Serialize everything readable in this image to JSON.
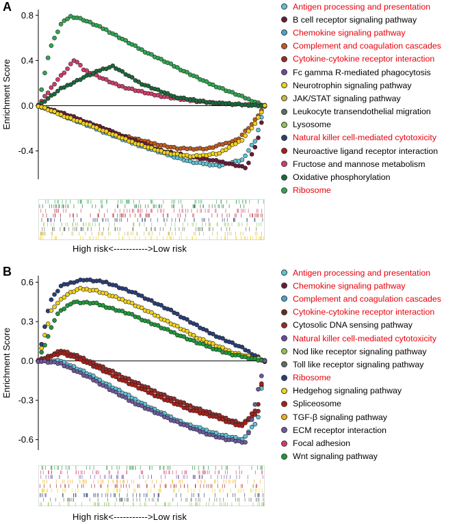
{
  "panels": [
    {
      "letter": "A",
      "ylabel": "Enrichment Score",
      "yticks": [
        0.8,
        0.4,
        0.0,
        -0.4
      ],
      "yticklabels": [
        "0.8",
        "0.4",
        "0.0",
        "-0.4"
      ],
      "xlabel": "High risk<----------->Low risk",
      "legend": [
        {
          "label": "Antigen processing and presentation",
          "color": "#5ec3d6",
          "highlight": true
        },
        {
          "label": "B cell receptor signaling pathway",
          "color": "#6b1a3c",
          "highlight": false
        },
        {
          "label": "Chemokine signaling pathway",
          "color": "#4fa5c8",
          "highlight": true
        },
        {
          "label": "Complement and coagulation cascades",
          "color": "#c25a1c",
          "highlight": true
        },
        {
          "label": "Cytokine-cytokine receptor interaction",
          "color": "#9a2a2a",
          "highlight": true
        },
        {
          "label": "Fc gamma R-mediated phagocytosis",
          "color": "#6b4aa0",
          "highlight": false
        },
        {
          "label": "Neurotrophin signaling pathway",
          "color": "#f2d21b",
          "highlight": false
        },
        {
          "label": "JAK/STAT signaling pathway",
          "color": "#c8b84a",
          "highlight": false
        },
        {
          "label": "Leukocyte transendothelial migration",
          "color": "#5f6e60",
          "highlight": false
        },
        {
          "label": "Lysosome",
          "color": "#8fc45a",
          "highlight": false
        },
        {
          "label": "Natural killer cell-mediated cytotoxicity",
          "color": "#2a3f7a",
          "highlight": true
        },
        {
          "label": "Neuroactive ligand receptor interaction",
          "color": "#a8201a",
          "highlight": false
        },
        {
          "label": "Fructose and mannose metabolism",
          "color": "#d43c6a",
          "highlight": false
        },
        {
          "label": "Oxidative phosphorylation",
          "color": "#1a6a3a",
          "highlight": false
        },
        {
          "label": "Ribosome",
          "color": "#2fa850",
          "highlight": true
        }
      ]
    },
    {
      "letter": "B",
      "ylabel": "Enrichment Score",
      "yticks": [
        0.6,
        0.3,
        0.0,
        -0.3,
        -0.6
      ],
      "yticklabels": [
        "0.6",
        "0.3",
        "0.0",
        "-0.3",
        "-0.6"
      ],
      "xlabel": "High risk<----------->Low risk",
      "legend": [
        {
          "label": "Antigen processing and presentation",
          "color": "#5ec3d6",
          "highlight": true
        },
        {
          "label": "Chemokine signaling pathway",
          "color": "#6b1a3c",
          "highlight": true
        },
        {
          "label": "Complement and coagulation cascades",
          "color": "#4fa5c8",
          "highlight": true
        },
        {
          "label": "Cytokine-cytokine receptor interaction",
          "color": "#6a2a1a",
          "highlight": true
        },
        {
          "label": "Cytosolic DNA sensing pathway",
          "color": "#9a2a2a",
          "highlight": false
        },
        {
          "label": "Natural killer cell-mediated cytotoxicity",
          "color": "#6b4aa0",
          "highlight": true
        },
        {
          "label": "Nod like receptor signaling pathway",
          "color": "#8fc45a",
          "highlight": false
        },
        {
          "label": "Toll like receptor signaling pathway",
          "color": "#5f6e60",
          "highlight": false
        },
        {
          "label": "Ribosome",
          "color": "#2a3f7a",
          "highlight": true
        },
        {
          "label": "Hedgehog signaling pathway",
          "color": "#f2d21b",
          "highlight": false
        },
        {
          "label": "Spliceosome",
          "color": "#a8201a",
          "highlight": false
        },
        {
          "label": "TGF-β signaling pathway",
          "color": "#f0b020",
          "highlight": false
        },
        {
          "label": "ECM receptor interaction",
          "color": "#6e5aa0",
          "highlight": false
        },
        {
          "label": "Focal adhesion",
          "color": "#d43c6a",
          "highlight": false
        },
        {
          "label": "Wnt signaling pathway",
          "color": "#1f9a3a",
          "highlight": false
        }
      ]
    }
  ],
  "chart_data": [
    {
      "type": "scatter",
      "title": "",
      "xlabel": "High risk<----------->Low risk",
      "ylabel": "Enrichment Score",
      "xlim": [
        0,
        1
      ],
      "ylim": [
        -0.65,
        0.85
      ],
      "series": [
        {
          "name": "Ribosome",
          "color": "#2fa850",
          "x": [
            0.0,
            0.05,
            0.1,
            0.14,
            0.17,
            0.2,
            0.3,
            0.45,
            0.6,
            0.75,
            0.9,
            1.0
          ],
          "y": [
            0.0,
            0.5,
            0.72,
            0.79,
            0.78,
            0.76,
            0.67,
            0.5,
            0.35,
            0.2,
            0.08,
            0.0
          ]
        },
        {
          "name": "Fructose and mannose metabolism",
          "color": "#d43c6a",
          "x": [
            0.0,
            0.08,
            0.13,
            0.16,
            0.2,
            0.35,
            0.5,
            0.65,
            0.8,
            1.0
          ],
          "y": [
            0.0,
            0.22,
            0.33,
            0.41,
            0.32,
            0.18,
            0.1,
            0.05,
            0.02,
            0.0
          ]
        },
        {
          "name": "Oxidative phosphorylation",
          "color": "#1a6a3a",
          "x": [
            0.0,
            0.1,
            0.2,
            0.28,
            0.33,
            0.45,
            0.6,
            0.75,
            0.9,
            1.0
          ],
          "y": [
            0.0,
            0.15,
            0.25,
            0.32,
            0.35,
            0.2,
            0.08,
            0.03,
            0.01,
            0.0
          ]
        },
        {
          "name": "Complement and coagulation cascades",
          "color": "#c25a1c",
          "x": [
            0.0,
            0.1,
            0.2,
            0.35,
            0.5,
            0.62,
            0.75,
            0.88,
            0.95,
            1.0
          ],
          "y": [
            0.0,
            -0.07,
            -0.14,
            -0.25,
            -0.33,
            -0.38,
            -0.38,
            -0.3,
            -0.15,
            0.0
          ]
        },
        {
          "name": "Antigen processing and presentation",
          "color": "#5ec3d6",
          "x": [
            0.0,
            0.1,
            0.25,
            0.4,
            0.55,
            0.68,
            0.8,
            0.9,
            0.96,
            1.0
          ],
          "y": [
            0.0,
            -0.08,
            -0.2,
            -0.32,
            -0.42,
            -0.5,
            -0.53,
            -0.48,
            -0.3,
            0.0
          ]
        },
        {
          "name": "B cell receptor signaling pathway",
          "color": "#6b1a3c",
          "x": [
            0.0,
            0.1,
            0.25,
            0.4,
            0.55,
            0.7,
            0.82,
            0.92,
            0.97,
            1.0
          ],
          "y": [
            0.0,
            -0.06,
            -0.17,
            -0.29,
            -0.4,
            -0.46,
            -0.5,
            -0.55,
            -0.3,
            0.0
          ]
        },
        {
          "name": "Neurotrophin signaling pathway",
          "color": "#f2d21b",
          "x": [
            0.0,
            0.1,
            0.25,
            0.4,
            0.55,
            0.68,
            0.8,
            0.9,
            0.96,
            1.0
          ],
          "y": [
            0.0,
            -0.08,
            -0.19,
            -0.31,
            -0.41,
            -0.45,
            -0.42,
            -0.3,
            -0.15,
            0.0
          ]
        }
      ]
    },
    {
      "type": "scatter",
      "title": "",
      "xlabel": "High risk<----------->Low risk",
      "ylabel": "Enrichment Score",
      "xlim": [
        0,
        1
      ],
      "ylim": [
        -0.68,
        0.65
      ],
      "series": [
        {
          "name": "Ribosome",
          "color": "#2a3f7a",
          "x": [
            0.0,
            0.05,
            0.1,
            0.15,
            0.2,
            0.3,
            0.45,
            0.6,
            0.75,
            0.9,
            1.0
          ],
          "y": [
            0.0,
            0.45,
            0.57,
            0.6,
            0.62,
            0.6,
            0.5,
            0.37,
            0.22,
            0.1,
            0.0
          ]
        },
        {
          "name": "Hedgehog signaling pathway",
          "color": "#f2d21b",
          "x": [
            0.0,
            0.06,
            0.12,
            0.18,
            0.25,
            0.4,
            0.55,
            0.7,
            0.85,
            1.0
          ],
          "y": [
            0.0,
            0.4,
            0.5,
            0.55,
            0.54,
            0.45,
            0.32,
            0.18,
            0.07,
            0.0
          ]
        },
        {
          "name": "Wnt signaling pathway",
          "color": "#1f9a3a",
          "x": [
            0.0,
            0.08,
            0.15,
            0.25,
            0.4,
            0.55,
            0.7,
            0.85,
            1.0
          ],
          "y": [
            0.0,
            0.35,
            0.45,
            0.44,
            0.36,
            0.25,
            0.14,
            0.05,
            0.0
          ]
        },
        {
          "name": "Cytosolic DNA sensing pathway",
          "color": "#9a2a2a",
          "x": [
            0.0,
            0.1,
            0.2,
            0.35,
            0.5,
            0.65,
            0.8,
            0.9,
            0.97,
            1.0
          ],
          "y": [
            0.0,
            0.08,
            0.02,
            -0.1,
            -0.22,
            -0.33,
            -0.42,
            -0.48,
            -0.4,
            0.0
          ]
        },
        {
          "name": "Antigen processing and presentation",
          "color": "#5ec3d6",
          "x": [
            0.0,
            0.1,
            0.2,
            0.35,
            0.5,
            0.65,
            0.8,
            0.9,
            0.97,
            1.0
          ],
          "y": [
            0.0,
            0.0,
            -0.08,
            -0.22,
            -0.36,
            -0.48,
            -0.56,
            -0.6,
            -0.45,
            0.0
          ]
        },
        {
          "name": "Spliceosome",
          "color": "#a8201a",
          "x": [
            0.0,
            0.1,
            0.2,
            0.35,
            0.5,
            0.65,
            0.8,
            0.9,
            0.97,
            1.0
          ],
          "y": [
            0.0,
            0.06,
            0.0,
            -0.13,
            -0.25,
            -0.36,
            -0.44,
            -0.5,
            -0.35,
            0.0
          ]
        },
        {
          "name": "ECM receptor interaction",
          "color": "#6e5aa0",
          "x": [
            0.0,
            0.1,
            0.25,
            0.4,
            0.55,
            0.7,
            0.83,
            0.92,
            1.0
          ],
          "y": [
            0.0,
            -0.02,
            -0.15,
            -0.3,
            -0.42,
            -0.53,
            -0.6,
            -0.62,
            0.0
          ]
        }
      ]
    }
  ]
}
